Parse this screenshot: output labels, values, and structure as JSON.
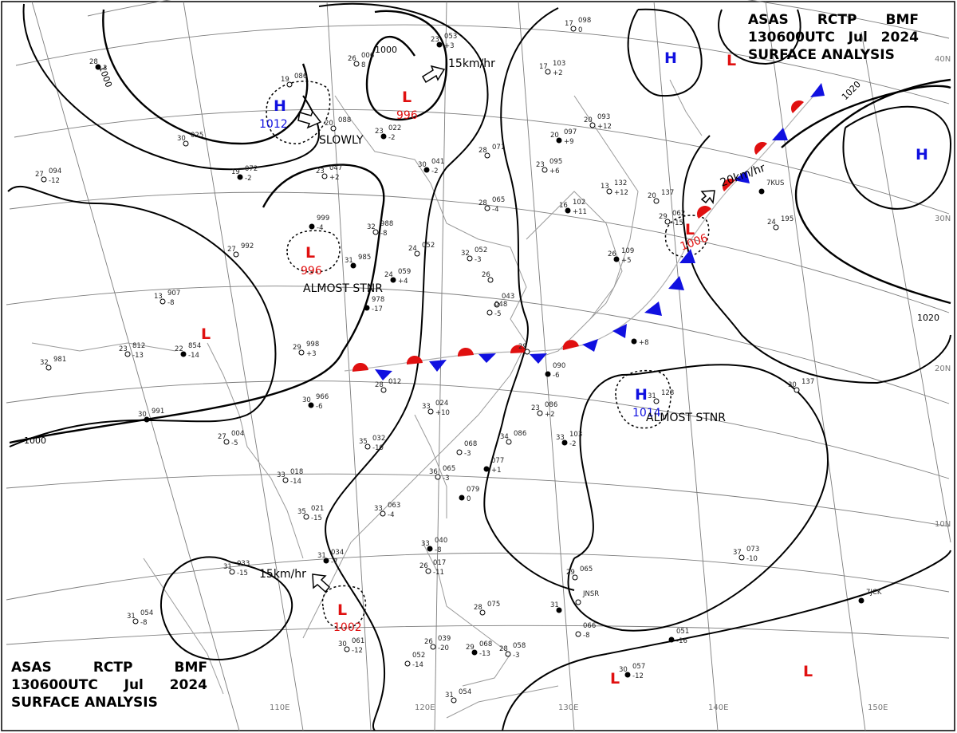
{
  "header": {
    "agency": "ASAS",
    "station": "RCTP",
    "code": "BMF",
    "datetime": "130600UTC",
    "month": "Jul",
    "year": "2024",
    "product": "SURFACE ANALYSIS"
  },
  "lat_labels": [
    "40N",
    "30N",
    "20N",
    "10N"
  ],
  "lon_labels": [
    "110E",
    "120E",
    "130E",
    "140E",
    "150E"
  ],
  "isobar_labels": [
    "1000",
    "1000",
    "1000",
    "1020",
    "1020"
  ],
  "centers": [
    {
      "type": "H",
      "pressure": "1012",
      "motion": "SLOWLY"
    },
    {
      "type": "L",
      "pressure": "996",
      "motion": "15km/hr"
    },
    {
      "type": "L",
      "pressure": "996",
      "motion": "ALMOST STNR"
    },
    {
      "type": "L",
      "pressure": "",
      "motion": ""
    },
    {
      "type": "L",
      "pressure": "1006",
      "motion": "20km/hr"
    },
    {
      "type": "H",
      "pressure": "1014",
      "motion": "ALMOST STNR"
    },
    {
      "type": "L",
      "pressure": "1002",
      "motion": "15km/hr"
    },
    {
      "type": "H",
      "pressure": "",
      "motion": ""
    },
    {
      "type": "L",
      "pressure": "",
      "motion": ""
    },
    {
      "type": "H",
      "pressure": "",
      "motion": ""
    },
    {
      "type": "L",
      "pressure": "",
      "motion": ""
    },
    {
      "type": "L",
      "pressure": "",
      "motion": ""
    }
  ],
  "stations": [
    {
      "t": "28",
      "p": "",
      "d": "3"
    },
    {
      "t": "19",
      "p": "086",
      "d": ""
    },
    {
      "t": "26",
      "p": "006",
      "d": "8"
    },
    {
      "t": "23",
      "p": "053",
      "d": "+3"
    },
    {
      "t": "17",
      "p": "098",
      "d": "0"
    },
    {
      "t": "20",
      "p": "088",
      "d": ""
    },
    {
      "t": "23",
      "p": "022",
      "d": "-2"
    },
    {
      "t": "30",
      "p": "025",
      "d": ""
    },
    {
      "t": "17",
      "p": "103",
      "d": "+2"
    },
    {
      "t": "20",
      "p": "097",
      "d": "+9"
    },
    {
      "t": "20",
      "p": "093",
      "d": "+12"
    },
    {
      "t": "27",
      "p": "094",
      "d": "-12"
    },
    {
      "t": "19",
      "p": "072",
      "d": "-2"
    },
    {
      "t": "23",
      "p": "047",
      "d": "+2"
    },
    {
      "t": "28",
      "p": "071",
      "d": ""
    },
    {
      "t": "30",
      "p": "041",
      "d": "-2"
    },
    {
      "t": "23",
      "p": "095",
      "d": "+6"
    },
    {
      "t": "13",
      "p": "132",
      "d": "+12"
    },
    {
      "t": "16",
      "p": "102",
      "d": "+11"
    },
    {
      "t": "20",
      "p": "137",
      "d": ""
    },
    {
      "t": "28",
      "p": "065",
      "d": "-4"
    },
    {
      "t": "",
      "p": "999",
      "d": "-4"
    },
    {
      "t": "32",
      "p": "988",
      "d": "-8"
    },
    {
      "t": "27",
      "p": "992",
      "d": ""
    },
    {
      "t": "31",
      "p": "985",
      "d": ""
    },
    {
      "t": "24",
      "p": "052",
      "d": ""
    },
    {
      "t": "32",
      "p": "052",
      "d": "-3"
    },
    {
      "t": "24",
      "p": "059",
      "d": "+4"
    },
    {
      "t": "26",
      "p": "",
      "d": ""
    },
    {
      "t": "",
      "p": "043",
      "d": ""
    },
    {
      "t": "26",
      "p": "109",
      "d": "+5"
    },
    {
      "t": "24",
      "p": "195",
      "d": ""
    },
    {
      "t": "13",
      "p": "907",
      "d": "-8"
    },
    {
      "t": "",
      "p": "978",
      "d": "-17"
    },
    {
      "t": "",
      "p": "048",
      "d": "-5"
    },
    {
      "t": "23",
      "p": "812",
      "d": "-13"
    },
    {
      "t": "22",
      "p": "854",
      "d": "-14"
    },
    {
      "t": "29",
      "p": "998",
      "d": "+3"
    },
    {
      "t": "29",
      "p": "",
      "d": ""
    },
    {
      "t": "",
      "p": "",
      "d": "+8"
    },
    {
      "t": "32",
      "p": "981",
      "d": ""
    },
    {
      "t": "28",
      "p": "012",
      "d": ""
    },
    {
      "t": "",
      "p": "090",
      "d": "-6"
    },
    {
      "t": "31",
      "p": "128",
      "d": ""
    },
    {
      "t": "30",
      "p": "137",
      "d": ""
    },
    {
      "t": "30",
      "p": "966",
      "d": "-6"
    },
    {
      "t": "33",
      "p": "024",
      "d": "+10"
    },
    {
      "t": "23",
      "p": "086",
      "d": "+2"
    },
    {
      "t": "30",
      "p": "991",
      "d": ""
    },
    {
      "t": "27",
      "p": "004",
      "d": "-5"
    },
    {
      "t": "34",
      "p": "086",
      "d": ""
    },
    {
      "t": "33",
      "p": "103",
      "d": "-2"
    },
    {
      "t": "35",
      "p": "032",
      "d": "-10"
    },
    {
      "t": "",
      "p": "068",
      "d": "-3"
    },
    {
      "t": "",
      "p": "077",
      "d": "+1"
    },
    {
      "t": "33",
      "p": "018",
      "d": "-14"
    },
    {
      "t": "36",
      "p": "065",
      "d": "-3"
    },
    {
      "t": "",
      "p": "079",
      "d": "0"
    },
    {
      "t": "35",
      "p": "021",
      "d": "-15"
    },
    {
      "t": "33",
      "p": "063",
      "d": "-4"
    },
    {
      "t": "33",
      "p": "040",
      "d": "-8"
    },
    {
      "t": "37",
      "p": "073",
      "d": "-10"
    },
    {
      "t": "31",
      "p": "033",
      "d": "-15"
    },
    {
      "t": "31",
      "p": "034",
      "d": "-7"
    },
    {
      "t": "26",
      "p": "017",
      "d": "-11"
    },
    {
      "t": "29",
      "p": "065",
      "d": ""
    },
    {
      "t": "31",
      "p": "",
      "d": ""
    },
    {
      "t": "",
      "p": "JNSR",
      "d": ""
    },
    {
      "t": "",
      "p": "066",
      "d": "-8"
    },
    {
      "t": "",
      "p": "7JCK",
      "d": ""
    },
    {
      "t": "31",
      "p": "054",
      "d": "-8"
    },
    {
      "t": "28",
      "p": "075",
      "d": ""
    },
    {
      "t": "",
      "p": "051",
      "d": "-16"
    },
    {
      "t": "30",
      "p": "061",
      "d": "-12"
    },
    {
      "t": "26",
      "p": "039",
      "d": "-20"
    },
    {
      "t": "29",
      "p": "068",
      "d": "-13"
    },
    {
      "t": "28",
      "p": "058",
      "d": "-3"
    },
    {
      "t": "",
      "p": "052",
      "d": "-14"
    },
    {
      "t": "30",
      "p": "057",
      "d": "-12"
    },
    {
      "t": "31",
      "p": "054",
      "d": ""
    },
    {
      "t": "29",
      "p": "062",
      "d": "-15"
    },
    {
      "t": "",
      "p": "7KUS",
      "d": ""
    },
    {
      "t": "",
      "p": "7RCB",
      "d": ""
    }
  ]
}
